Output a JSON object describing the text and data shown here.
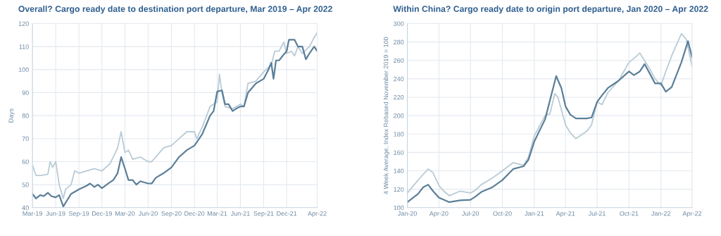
{
  "chart_data": [
    {
      "type": "line",
      "title": "Overall? Cargo ready date to destination port departure, Mar 2019 – Apr 2022",
      "ylabel": "Days",
      "grid": true,
      "marker": "none",
      "line_style": "solid",
      "xlim": [
        "2019-03",
        "2022-04"
      ],
      "ylim": [
        40,
        120
      ],
      "yticks": [
        40,
        50,
        60,
        70,
        80,
        90,
        100,
        110,
        120
      ],
      "xticks": [
        {
          "value": "2019-03",
          "label": "Mar-19"
        },
        {
          "value": "2019-06",
          "label": "Jun-19"
        },
        {
          "value": "2019-09",
          "label": "Sep-19"
        },
        {
          "value": "2019-12",
          "label": "Dec-19"
        },
        {
          "value": "2020-03",
          "label": "Mar-20"
        },
        {
          "value": "2020-06",
          "label": "Jun-20"
        },
        {
          "value": "2020-09",
          "label": "Sep-20"
        },
        {
          "value": "2020-12",
          "label": "Dec-20"
        },
        {
          "value": "2021-03",
          "label": "Mar-21"
        },
        {
          "value": "2021-06",
          "label": "Jun-21"
        },
        {
          "value": "2021-09",
          "label": "Sep-21"
        },
        {
          "value": "2021-12",
          "label": "Dec-21"
        },
        {
          "value": "2022-04",
          "label": "Apr-22"
        }
      ],
      "series": [
        {
          "color": "#b9cbd6",
          "x": [
            "2019-03-01",
            "2019-03-15",
            "2019-04-01",
            "2019-05-01",
            "2019-05-10",
            "2019-05-20",
            "2019-06-01",
            "2019-06-15",
            "2019-07-01",
            "2019-07-10",
            "2019-08-01",
            "2019-08-15",
            "2019-09-01",
            "2019-10-01",
            "2019-11-01",
            "2019-12-01",
            "2020-01-01",
            "2020-01-15",
            "2020-02-01",
            "2020-02-15",
            "2020-03-01",
            "2020-03-15",
            "2020-04-01",
            "2020-05-01",
            "2020-06-01",
            "2020-06-15",
            "2020-07-01",
            "2020-08-01",
            "2020-09-01",
            "2020-10-01",
            "2020-11-01",
            "2020-12-01",
            "2020-12-10",
            "2021-01-01",
            "2021-02-01",
            "2021-03-01",
            "2021-03-10",
            "2021-03-20",
            "2021-04-01",
            "2021-05-01",
            "2021-06-01",
            "2021-06-15",
            "2021-07-01",
            "2021-08-01",
            "2021-09-01",
            "2021-09-20",
            "2021-10-01",
            "2021-10-15",
            "2021-11-01",
            "2021-11-20",
            "2021-12-01",
            "2021-12-20",
            "2022-01-01",
            "2022-01-15",
            "2022-02-01",
            "2022-03-01",
            "2022-03-20",
            "2022-04-01"
          ],
          "values": [
            58.5,
            54,
            54,
            54.5,
            60,
            57.5,
            60,
            50,
            44,
            48,
            50,
            56,
            55,
            56,
            57,
            56,
            59,
            62,
            66,
            73,
            64,
            65,
            61,
            62,
            60,
            60,
            62,
            66,
            67,
            70,
            73,
            73,
            70,
            75,
            84,
            86,
            98,
            90,
            84,
            83,
            85,
            84,
            94,
            95,
            99,
            101,
            102,
            108,
            108,
            112,
            107,
            108,
            106,
            110,
            107,
            110,
            114,
            116
          ]
        },
        {
          "color": "#5b7f99",
          "x": [
            "2019-03-01",
            "2019-03-15",
            "2019-04-01",
            "2019-04-15",
            "2019-05-01",
            "2019-05-15",
            "2019-06-01",
            "2019-06-15",
            "2019-07-01",
            "2019-07-15",
            "2019-08-01",
            "2019-09-01",
            "2019-10-01",
            "2019-10-15",
            "2019-11-01",
            "2019-11-15",
            "2019-12-01",
            "2020-01-01",
            "2020-01-15",
            "2020-02-01",
            "2020-02-15",
            "2020-03-01",
            "2020-03-15",
            "2020-04-01",
            "2020-04-15",
            "2020-05-01",
            "2020-06-01",
            "2020-06-15",
            "2020-07-01",
            "2020-08-01",
            "2020-09-01",
            "2020-10-01",
            "2020-11-01",
            "2020-12-01",
            "2021-01-01",
            "2021-02-01",
            "2021-02-15",
            "2021-03-01",
            "2021-03-20",
            "2021-04-01",
            "2021-04-15",
            "2021-05-01",
            "2021-05-15",
            "2021-06-01",
            "2021-06-15",
            "2021-07-01",
            "2021-08-01",
            "2021-09-01",
            "2021-09-20",
            "2021-10-01",
            "2021-10-10",
            "2021-10-20",
            "2021-11-01",
            "2021-11-15",
            "2021-12-01",
            "2021-12-10",
            "2022-01-01",
            "2022-01-15",
            "2022-02-01",
            "2022-02-15",
            "2022-03-01",
            "2022-03-20",
            "2022-04-01"
          ],
          "values": [
            46,
            44,
            45.5,
            45,
            46.5,
            45,
            44.5,
            45.5,
            40.5,
            43,
            46,
            48,
            49.5,
            50.5,
            49,
            50,
            48.5,
            51,
            52,
            55,
            62,
            57,
            52,
            52,
            50,
            51.5,
            50.5,
            50.5,
            53,
            55,
            57.5,
            62,
            65,
            67,
            72,
            80,
            82,
            90.5,
            91,
            85,
            85,
            82,
            83,
            84,
            84,
            90,
            94,
            96,
            100,
            103,
            96,
            104,
            104,
            106,
            108,
            113,
            113,
            110,
            110,
            104.5,
            107,
            110,
            108
          ]
        }
      ]
    },
    {
      "type": "line",
      "title": "Within China? Cargo ready date to origin port departure, Jan 2020 – Apr 2022",
      "ylabel": "4 Week Average, Index Rebased November 2019 = 100",
      "grid": true,
      "marker": "none",
      "line_style": "solid",
      "xlim": [
        "2020-01",
        "2022-04"
      ],
      "ylim": [
        100,
        300
      ],
      "yticks": [
        100,
        120,
        140,
        160,
        180,
        200,
        220,
        240,
        260,
        280,
        300
      ],
      "xticks": [
        {
          "value": "2020-01",
          "label": "Jan-20"
        },
        {
          "value": "2020-04",
          "label": "Apr-20"
        },
        {
          "value": "2020-07",
          "label": "Jul-20"
        },
        {
          "value": "2020-10",
          "label": "Oct-20"
        },
        {
          "value": "2021-01",
          "label": "Jan-21"
        },
        {
          "value": "2021-04",
          "label": "Apr-21"
        },
        {
          "value": "2021-07",
          "label": "Jul-21"
        },
        {
          "value": "2021-10",
          "label": "Oct-21"
        },
        {
          "value": "2022-01",
          "label": "Jan-22"
        },
        {
          "value": "2022-04",
          "label": "Apr-22"
        }
      ],
      "series": [
        {
          "color": "#b9cbd6",
          "x": [
            "2020-01-01",
            "2020-02-01",
            "2020-02-15",
            "2020-03-01",
            "2020-03-15",
            "2020-04-01",
            "2020-04-15",
            "2020-05-01",
            "2020-06-01",
            "2020-07-01",
            "2020-07-15",
            "2020-08-01",
            "2020-09-01",
            "2020-10-01",
            "2020-11-01",
            "2020-12-01",
            "2020-12-15",
            "2021-01-01",
            "2021-02-01",
            "2021-02-15",
            "2021-03-01",
            "2021-03-10",
            "2021-04-01",
            "2021-04-15",
            "2021-05-01",
            "2021-06-01",
            "2021-06-15",
            "2021-07-01",
            "2021-07-15",
            "2021-08-01",
            "2021-09-01",
            "2021-10-01",
            "2021-10-15",
            "2021-11-01",
            "2021-12-01",
            "2021-12-15",
            "2022-01-01",
            "2022-01-15",
            "2022-02-01",
            "2022-03-01",
            "2022-03-15",
            "2022-04-01"
          ],
          "values": [
            116,
            130,
            136,
            142,
            138,
            124,
            118,
            113,
            118,
            116,
            119,
            125,
            132,
            140,
            149,
            146,
            155,
            178,
            200,
            202,
            224,
            220,
            190,
            181,
            175,
            183,
            190,
            215,
            212,
            225,
            238,
            258,
            262,
            268,
            250,
            240,
            233,
            248,
            265,
            289,
            283,
            253
          ]
        },
        {
          "color": "#5b7f99",
          "x": [
            "2020-01-01",
            "2020-02-01",
            "2020-02-15",
            "2020-03-01",
            "2020-03-15",
            "2020-04-01",
            "2020-05-01",
            "2020-06-01",
            "2020-07-01",
            "2020-07-15",
            "2020-08-01",
            "2020-09-01",
            "2020-10-01",
            "2020-11-01",
            "2020-12-01",
            "2020-12-15",
            "2021-01-01",
            "2021-02-01",
            "2021-03-05",
            "2021-03-20",
            "2021-04-01",
            "2021-04-15",
            "2021-05-01",
            "2021-06-01",
            "2021-06-15",
            "2021-07-01",
            "2021-07-15",
            "2021-08-01",
            "2021-09-01",
            "2021-10-01",
            "2021-10-15",
            "2021-11-01",
            "2021-11-15",
            "2021-12-01",
            "2021-12-15",
            "2022-01-01",
            "2022-01-15",
            "2022-02-01",
            "2022-03-01",
            "2022-03-20",
            "2022-04-01"
          ],
          "values": [
            106,
            115,
            122,
            125,
            118,
            111,
            106,
            108,
            108.5,
            112,
            117,
            122,
            130,
            142,
            145,
            152,
            172,
            196,
            243,
            230,
            210,
            201,
            197,
            197,
            198,
            215,
            222,
            230,
            238,
            248,
            244,
            248,
            256,
            245,
            235,
            235,
            226,
            231,
            258,
            281,
            263
          ]
        }
      ]
    }
  ]
}
